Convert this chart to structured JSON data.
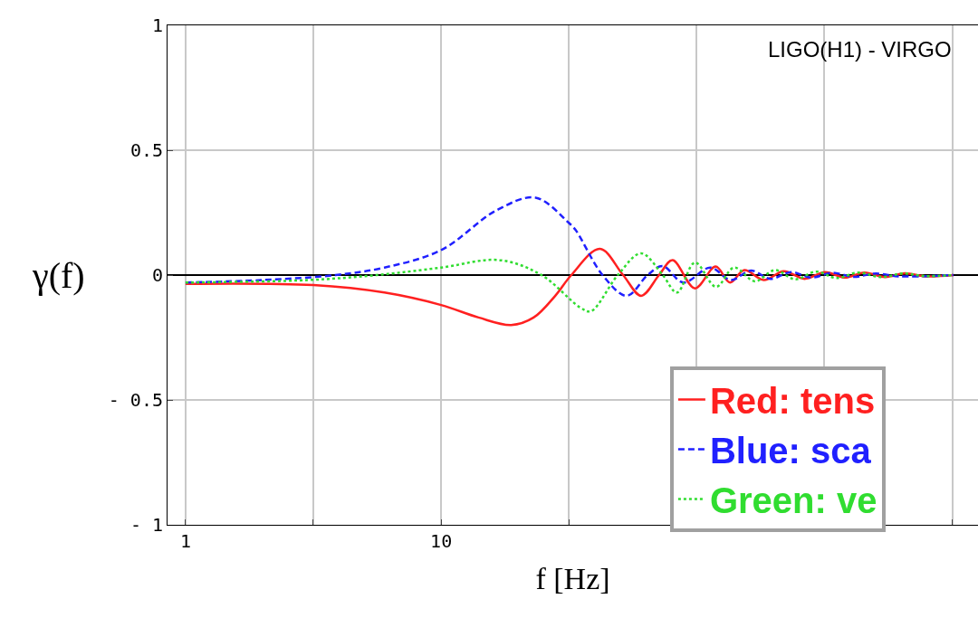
{
  "chart_data": {
    "type": "line",
    "xlabel": "f [Hz]",
    "ylabel": "γ(f)",
    "annotations": [
      "LIGO(H1) - VIRGO"
    ],
    "log": "x",
    "grid": true,
    "legend": "bottom right",
    "xlim": [
      0.85,
      1260
    ],
    "ylim": [
      -1,
      1
    ],
    "xticks": [
      1,
      {
        "value": 3.16,
        "label": null
      },
      10,
      {
        "value": 31.6,
        "label": null
      },
      {
        "value": 100,
        "label": null
      },
      {
        "value": 316,
        "label": null
      },
      {
        "value": 1000,
        "label": null
      }
    ],
    "yticks": [
      {
        "value": -1,
        "label": "- 1"
      },
      {
        "value": -0.5,
        "label": "- 0.5"
      },
      0,
      0.5,
      1
    ],
    "ref_lines": [
      {
        "axis": "y",
        "value": 0,
        "label": null,
        "color": "#000000"
      }
    ],
    "series": [
      {
        "name": "Red: tens",
        "color": "#ff2020",
        "line_style": "solid",
        "x": [
          1,
          3.16,
          6,
          10,
          14,
          18.8,
          23,
          28.1,
          32.3,
          41.8,
          51.5,
          60.6,
          71.2,
          80.4,
          98.4,
          118.5,
          134.9,
          153.5,
          183,
          219,
          264,
          318,
          380,
          453,
          546,
          652,
          785,
          1010
        ],
        "values": [
          -0.035,
          -0.04,
          -0.07,
          -0.12,
          -0.17,
          -0.2,
          -0.17,
          -0.08,
          0,
          0.105,
          0,
          -0.083,
          0,
          0.06,
          -0.053,
          0.034,
          -0.03,
          0.02,
          -0.02,
          0.015,
          -0.015,
          0.012,
          -0.01,
          0.01,
          -0.008,
          0.007,
          -0.005,
          0
        ]
      },
      {
        "name": "Blue: sca",
        "color": "#2020ff",
        "line_style": "dashed",
        "x": [
          1,
          2,
          3.86,
          6,
          10,
          16.5,
          23.4,
          31.5,
          33.6,
          42.8,
          53.2,
          64.2,
          73.6,
          88.6,
          113,
          136,
          163,
          194,
          234,
          281,
          339,
          411,
          503,
          615,
          1010
        ],
        "values": [
          -0.03,
          -0.02,
          0,
          0.03,
          0.1,
          0.26,
          0.31,
          0.21,
          0.18,
          0,
          -0.083,
          0,
          0.036,
          -0.03,
          0.03,
          -0.02,
          0.018,
          -0.015,
          0.012,
          -0.01,
          0.009,
          -0.007,
          0.006,
          -0.005,
          0
        ]
      },
      {
        "name": "Green: ve",
        "color": "#30dd30",
        "line_style": "dotted",
        "x": [
          1,
          3,
          5.59,
          10,
          16.9,
          24.7,
          35,
          38.5,
          49.1,
          60.6,
          73.6,
          83.7,
          98.4,
          119,
          140,
          169,
          202,
          243,
          293,
          352,
          428,
          524,
          641,
          785,
          1010
        ],
        "values": [
          -0.03,
          -0.02,
          0,
          0.03,
          0.06,
          0,
          -0.13,
          -0.145,
          0,
          0.087,
          0,
          -0.07,
          0.05,
          -0.047,
          0.03,
          -0.025,
          0.02,
          -0.017,
          0.014,
          -0.012,
          0.01,
          -0.008,
          0.006,
          -0.004,
          0
        ]
      }
    ]
  }
}
